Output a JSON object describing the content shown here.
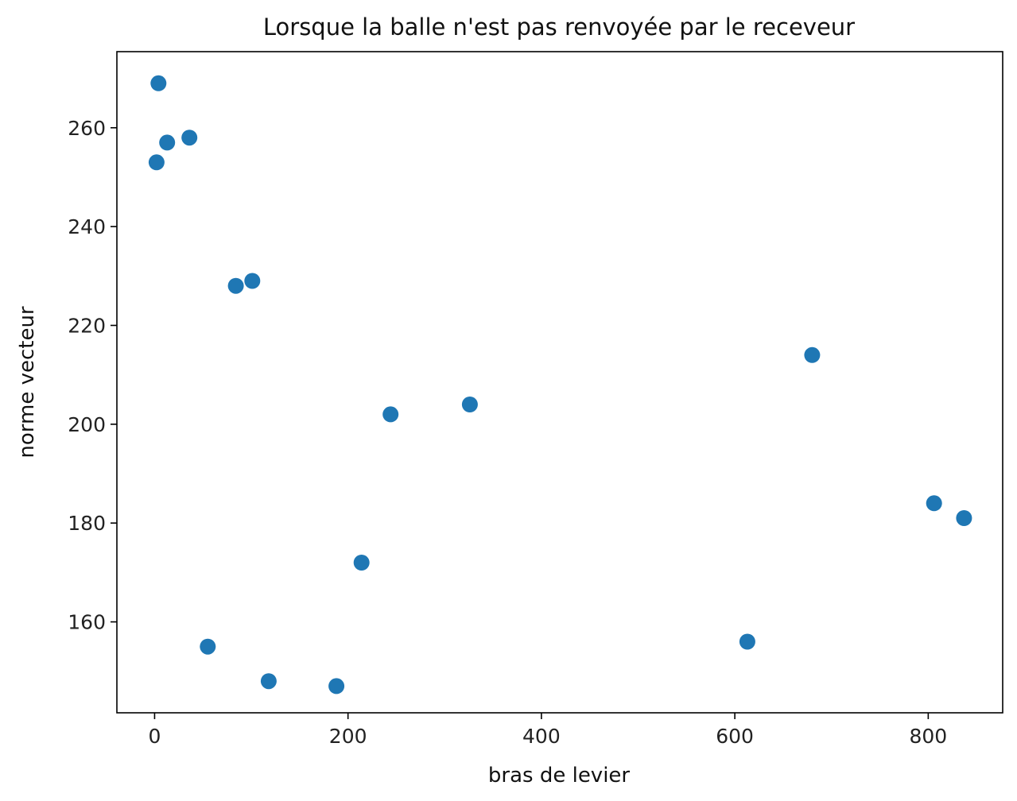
{
  "chart_data": {
    "type": "scatter",
    "title": "Lorsque la balle n'est pas renvoyée par le receveur",
    "xlabel": "bras de levier",
    "ylabel": "norme vecteur",
    "xlim": [
      -39,
      877
    ],
    "ylim": [
      141.6,
      275.4
    ],
    "xticks": [
      0,
      200,
      400,
      600,
      800
    ],
    "yticks": [
      160,
      180,
      200,
      220,
      240,
      260
    ],
    "grid": false,
    "marker_color": "#1f77b4",
    "points": [
      {
        "x": 4,
        "y": 269
      },
      {
        "x": 13,
        "y": 257
      },
      {
        "x": 36,
        "y": 258
      },
      {
        "x": 2,
        "y": 253
      },
      {
        "x": 84,
        "y": 228
      },
      {
        "x": 101,
        "y": 229
      },
      {
        "x": 680,
        "y": 214
      },
      {
        "x": 244,
        "y": 202
      },
      {
        "x": 326,
        "y": 204
      },
      {
        "x": 806,
        "y": 184
      },
      {
        "x": 837,
        "y": 181
      },
      {
        "x": 214,
        "y": 172
      },
      {
        "x": 55,
        "y": 155
      },
      {
        "x": 613,
        "y": 156
      },
      {
        "x": 118,
        "y": 148
      },
      {
        "x": 188,
        "y": 147
      }
    ]
  }
}
